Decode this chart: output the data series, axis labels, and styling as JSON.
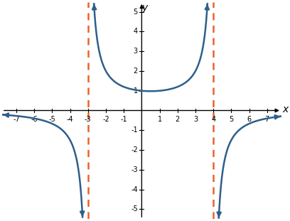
{
  "title": "",
  "xlabel": "x",
  "ylabel": "y",
  "xlim": [
    -7.8,
    7.8
  ],
  "ylim": [
    -5.5,
    5.5
  ],
  "xticks": [
    -7,
    -6,
    -5,
    -4,
    -3,
    -2,
    -1,
    1,
    2,
    3,
    4,
    5,
    6,
    7
  ],
  "yticks": [
    -5,
    -4,
    -3,
    -2,
    -1,
    1,
    2,
    3,
    4,
    5
  ],
  "asymptotes": [
    -3,
    4
  ],
  "asymptote_color": "#E8632C",
  "curve_color": "#2E5F8A",
  "background_color": "#ffffff",
  "func_scale": -12,
  "figsize": [
    4.08,
    3.11
  ],
  "dpi": 100
}
